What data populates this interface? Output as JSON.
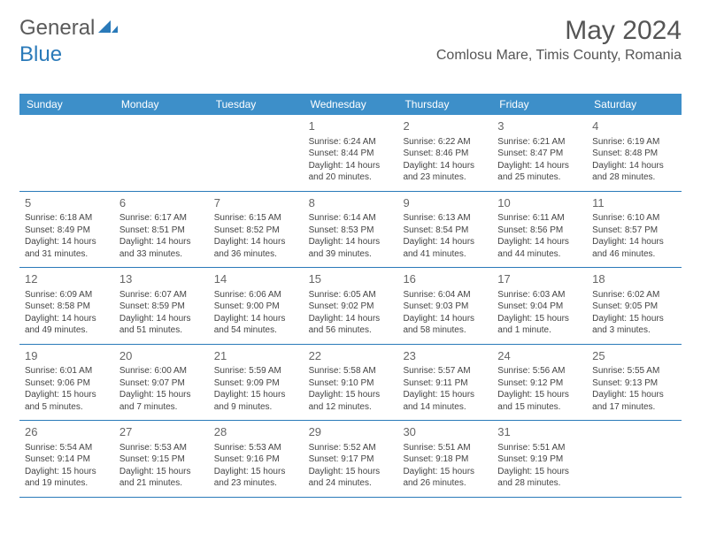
{
  "logo": {
    "text1": "General",
    "text2": "Blue"
  },
  "title": "May 2024",
  "location": "Comlosu Mare, Timis County, Romania",
  "colors": {
    "headerBg": "#3d8fc9",
    "headerText": "#ffffff",
    "borderColor": "#2a7ab9",
    "textColor": "#444444",
    "titleColor": "#555555"
  },
  "weekdays": [
    "Sunday",
    "Monday",
    "Tuesday",
    "Wednesday",
    "Thursday",
    "Friday",
    "Saturday"
  ],
  "weeks": [
    [
      {
        "n": "",
        "sr": "",
        "ss": "",
        "dl": ""
      },
      {
        "n": "",
        "sr": "",
        "ss": "",
        "dl": ""
      },
      {
        "n": "",
        "sr": "",
        "ss": "",
        "dl": ""
      },
      {
        "n": "1",
        "sr": "Sunrise: 6:24 AM",
        "ss": "Sunset: 8:44 PM",
        "dl": "Daylight: 14 hours and 20 minutes."
      },
      {
        "n": "2",
        "sr": "Sunrise: 6:22 AM",
        "ss": "Sunset: 8:46 PM",
        "dl": "Daylight: 14 hours and 23 minutes."
      },
      {
        "n": "3",
        "sr": "Sunrise: 6:21 AM",
        "ss": "Sunset: 8:47 PM",
        "dl": "Daylight: 14 hours and 25 minutes."
      },
      {
        "n": "4",
        "sr": "Sunrise: 6:19 AM",
        "ss": "Sunset: 8:48 PM",
        "dl": "Daylight: 14 hours and 28 minutes."
      }
    ],
    [
      {
        "n": "5",
        "sr": "Sunrise: 6:18 AM",
        "ss": "Sunset: 8:49 PM",
        "dl": "Daylight: 14 hours and 31 minutes."
      },
      {
        "n": "6",
        "sr": "Sunrise: 6:17 AM",
        "ss": "Sunset: 8:51 PM",
        "dl": "Daylight: 14 hours and 33 minutes."
      },
      {
        "n": "7",
        "sr": "Sunrise: 6:15 AM",
        "ss": "Sunset: 8:52 PM",
        "dl": "Daylight: 14 hours and 36 minutes."
      },
      {
        "n": "8",
        "sr": "Sunrise: 6:14 AM",
        "ss": "Sunset: 8:53 PM",
        "dl": "Daylight: 14 hours and 39 minutes."
      },
      {
        "n": "9",
        "sr": "Sunrise: 6:13 AM",
        "ss": "Sunset: 8:54 PM",
        "dl": "Daylight: 14 hours and 41 minutes."
      },
      {
        "n": "10",
        "sr": "Sunrise: 6:11 AM",
        "ss": "Sunset: 8:56 PM",
        "dl": "Daylight: 14 hours and 44 minutes."
      },
      {
        "n": "11",
        "sr": "Sunrise: 6:10 AM",
        "ss": "Sunset: 8:57 PM",
        "dl": "Daylight: 14 hours and 46 minutes."
      }
    ],
    [
      {
        "n": "12",
        "sr": "Sunrise: 6:09 AM",
        "ss": "Sunset: 8:58 PM",
        "dl": "Daylight: 14 hours and 49 minutes."
      },
      {
        "n": "13",
        "sr": "Sunrise: 6:07 AM",
        "ss": "Sunset: 8:59 PM",
        "dl": "Daylight: 14 hours and 51 minutes."
      },
      {
        "n": "14",
        "sr": "Sunrise: 6:06 AM",
        "ss": "Sunset: 9:00 PM",
        "dl": "Daylight: 14 hours and 54 minutes."
      },
      {
        "n": "15",
        "sr": "Sunrise: 6:05 AM",
        "ss": "Sunset: 9:02 PM",
        "dl": "Daylight: 14 hours and 56 minutes."
      },
      {
        "n": "16",
        "sr": "Sunrise: 6:04 AM",
        "ss": "Sunset: 9:03 PM",
        "dl": "Daylight: 14 hours and 58 minutes."
      },
      {
        "n": "17",
        "sr": "Sunrise: 6:03 AM",
        "ss": "Sunset: 9:04 PM",
        "dl": "Daylight: 15 hours and 1 minute."
      },
      {
        "n": "18",
        "sr": "Sunrise: 6:02 AM",
        "ss": "Sunset: 9:05 PM",
        "dl": "Daylight: 15 hours and 3 minutes."
      }
    ],
    [
      {
        "n": "19",
        "sr": "Sunrise: 6:01 AM",
        "ss": "Sunset: 9:06 PM",
        "dl": "Daylight: 15 hours and 5 minutes."
      },
      {
        "n": "20",
        "sr": "Sunrise: 6:00 AM",
        "ss": "Sunset: 9:07 PM",
        "dl": "Daylight: 15 hours and 7 minutes."
      },
      {
        "n": "21",
        "sr": "Sunrise: 5:59 AM",
        "ss": "Sunset: 9:09 PM",
        "dl": "Daylight: 15 hours and 9 minutes."
      },
      {
        "n": "22",
        "sr": "Sunrise: 5:58 AM",
        "ss": "Sunset: 9:10 PM",
        "dl": "Daylight: 15 hours and 12 minutes."
      },
      {
        "n": "23",
        "sr": "Sunrise: 5:57 AM",
        "ss": "Sunset: 9:11 PM",
        "dl": "Daylight: 15 hours and 14 minutes."
      },
      {
        "n": "24",
        "sr": "Sunrise: 5:56 AM",
        "ss": "Sunset: 9:12 PM",
        "dl": "Daylight: 15 hours and 15 minutes."
      },
      {
        "n": "25",
        "sr": "Sunrise: 5:55 AM",
        "ss": "Sunset: 9:13 PM",
        "dl": "Daylight: 15 hours and 17 minutes."
      }
    ],
    [
      {
        "n": "26",
        "sr": "Sunrise: 5:54 AM",
        "ss": "Sunset: 9:14 PM",
        "dl": "Daylight: 15 hours and 19 minutes."
      },
      {
        "n": "27",
        "sr": "Sunrise: 5:53 AM",
        "ss": "Sunset: 9:15 PM",
        "dl": "Daylight: 15 hours and 21 minutes."
      },
      {
        "n": "28",
        "sr": "Sunrise: 5:53 AM",
        "ss": "Sunset: 9:16 PM",
        "dl": "Daylight: 15 hours and 23 minutes."
      },
      {
        "n": "29",
        "sr": "Sunrise: 5:52 AM",
        "ss": "Sunset: 9:17 PM",
        "dl": "Daylight: 15 hours and 24 minutes."
      },
      {
        "n": "30",
        "sr": "Sunrise: 5:51 AM",
        "ss": "Sunset: 9:18 PM",
        "dl": "Daylight: 15 hours and 26 minutes."
      },
      {
        "n": "31",
        "sr": "Sunrise: 5:51 AM",
        "ss": "Sunset: 9:19 PM",
        "dl": "Daylight: 15 hours and 28 minutes."
      },
      {
        "n": "",
        "sr": "",
        "ss": "",
        "dl": ""
      }
    ]
  ]
}
